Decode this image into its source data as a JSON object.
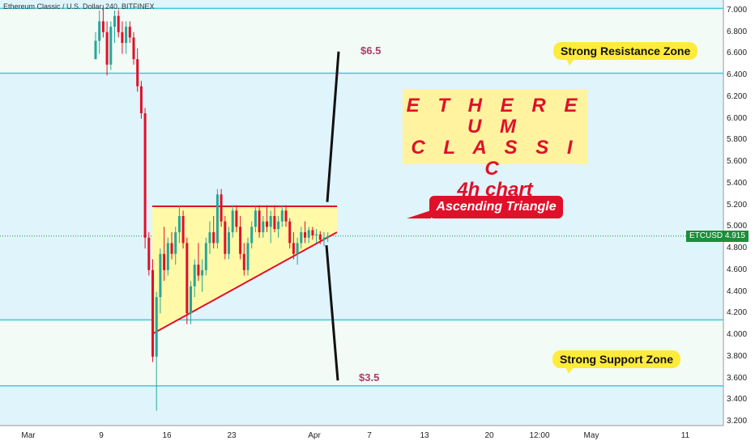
{
  "header": {
    "title": "Ethereum Classic / U.S. Dollar, 240, BITFINEX"
  },
  "annotations": {
    "title_line1": "E T H E R E U M",
    "title_line2": "C L A S S I C",
    "title_line3": "4h chart",
    "pattern": "Ascending Triangle",
    "resistance_zone": "Strong Resistance Zone",
    "support_zone": "Strong Support Zone",
    "target_up": "$6.5",
    "target_down": "$3.5"
  },
  "price_tag": {
    "symbol": "ETCUSD",
    "value": "4.915",
    "color": "#1b8f3a"
  },
  "colors": {
    "background_zone": "#e0f4fb",
    "level_line": "#3ec9e0",
    "bull_candle": "#26a69a",
    "bear_candle": "#e0102a",
    "triangle_fill": "#fff9a8",
    "triangle_line": "#e0102a",
    "projection_line": "#111111"
  },
  "chart_data": {
    "type": "candlestick",
    "x_tick_labels": [
      "Mar",
      "9",
      "16",
      "23",
      "Apr",
      "7",
      "13",
      "20",
      "12:00",
      "May",
      "11"
    ],
    "y_tick_labels": [
      "7.000",
      "6.800",
      "6.600",
      "6.400",
      "6.200",
      "6.000",
      "5.800",
      "5.600",
      "5.400",
      "5.200",
      "5.000",
      "4.800",
      "4.600",
      "4.400",
      "4.200",
      "4.000",
      "3.800",
      "3.600",
      "3.400",
      "3.200"
    ],
    "ylim": [
      3.2,
      7.05
    ],
    "last_price": 4.915,
    "horizontal_levels": [
      7.02,
      6.42,
      4.14,
      3.53
    ],
    "resistance_zone": [
      6.42,
      7.02
    ],
    "support_zone": [
      3.53,
      4.14
    ],
    "ascending_triangle": {
      "resistance": 5.19,
      "support_start": 4.01,
      "support_end": 4.95
    },
    "targets": {
      "up": 6.5,
      "down": 3.5
    },
    "candles": [
      [
        6.55,
        6.8,
        6.55,
        6.72
      ],
      [
        6.72,
        7.0,
        6.6,
        6.9
      ],
      [
        6.9,
        7.05,
        6.75,
        6.8
      ],
      [
        6.8,
        6.9,
        6.4,
        6.5
      ],
      [
        6.5,
        6.9,
        6.45,
        6.85
      ],
      [
        6.85,
        7.0,
        6.7,
        6.95
      ],
      [
        6.95,
        7.0,
        6.75,
        6.8
      ],
      [
        6.8,
        6.9,
        6.6,
        6.7
      ],
      [
        6.7,
        6.9,
        6.6,
        6.85
      ],
      [
        6.85,
        6.9,
        6.7,
        6.75
      ],
      [
        6.75,
        6.8,
        6.5,
        6.55
      ],
      [
        6.55,
        6.65,
        6.25,
        6.3
      ],
      [
        6.3,
        6.35,
        6.0,
        6.05
      ],
      [
        6.05,
        6.1,
        4.8,
        4.9
      ],
      [
        4.9,
        4.95,
        4.55,
        4.6
      ],
      [
        4.6,
        4.7,
        3.75,
        3.8
      ],
      [
        3.8,
        4.4,
        3.3,
        4.35
      ],
      [
        4.35,
        4.8,
        4.2,
        4.75
      ],
      [
        4.75,
        5.0,
        4.5,
        4.6
      ],
      [
        4.6,
        4.9,
        4.55,
        4.85
      ],
      [
        4.85,
        4.95,
        4.7,
        4.75
      ],
      [
        4.75,
        5.0,
        4.65,
        4.95
      ],
      [
        4.95,
        5.2,
        4.85,
        5.1
      ],
      [
        5.1,
        5.15,
        4.8,
        4.85
      ],
      [
        4.85,
        4.9,
        4.1,
        4.2
      ],
      [
        4.2,
        4.5,
        4.1,
        4.45
      ],
      [
        4.45,
        4.7,
        4.35,
        4.65
      ],
      [
        4.65,
        4.85,
        4.5,
        4.55
      ],
      [
        4.55,
        4.7,
        4.4,
        4.6
      ],
      [
        4.6,
        4.9,
        4.55,
        4.85
      ],
      [
        4.85,
        5.05,
        4.75,
        4.95
      ],
      [
        4.95,
        5.1,
        4.8,
        4.85
      ],
      [
        4.85,
        5.35,
        4.8,
        5.3
      ],
      [
        5.3,
        5.35,
        5.0,
        5.05
      ],
      [
        5.05,
        5.1,
        4.7,
        4.75
      ],
      [
        4.75,
        5.0,
        4.7,
        4.95
      ],
      [
        4.95,
        5.2,
        4.9,
        5.15
      ],
      [
        5.15,
        5.2,
        4.95,
        5.0
      ],
      [
        5.0,
        5.1,
        4.7,
        4.75
      ],
      [
        4.75,
        4.85,
        4.55,
        4.6
      ],
      [
        4.6,
        4.9,
        4.55,
        4.85
      ],
      [
        4.85,
        5.05,
        4.8,
        5.0
      ],
      [
        5.0,
        5.2,
        4.95,
        5.15
      ],
      [
        5.15,
        5.2,
        4.9,
        4.95
      ],
      [
        4.95,
        5.1,
        4.9,
        5.05
      ],
      [
        5.05,
        5.2,
        4.95,
        5.0
      ],
      [
        5.0,
        5.15,
        4.85,
        5.1
      ],
      [
        5.1,
        5.2,
        4.95,
        4.98
      ],
      [
        4.98,
        5.1,
        4.9,
        5.05
      ],
      [
        5.05,
        5.2,
        5.0,
        5.15
      ],
      [
        5.15,
        5.2,
        5.0,
        5.05
      ],
      [
        5.05,
        5.08,
        4.8,
        4.85
      ],
      [
        4.85,
        4.95,
        4.7,
        4.75
      ],
      [
        4.75,
        4.9,
        4.65,
        4.85
      ],
      [
        4.85,
        5.0,
        4.8,
        4.95
      ],
      [
        4.95,
        5.05,
        4.85,
        4.9
      ],
      [
        4.9,
        5.0,
        4.85,
        4.97
      ],
      [
        4.97,
        5.0,
        4.88,
        4.92
      ],
      [
        4.92,
        4.98,
        4.85,
        4.93
      ],
      [
        4.93,
        4.96,
        4.84,
        4.88
      ],
      [
        4.88,
        4.95,
        4.82,
        4.9
      ],
      [
        4.9,
        4.95,
        4.86,
        4.915
      ]
    ]
  }
}
